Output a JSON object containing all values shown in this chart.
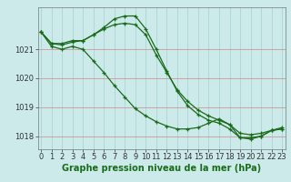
{
  "line1": {
    "x": [
      0,
      1,
      2,
      3,
      4,
      5,
      6,
      7,
      8,
      9,
      10,
      11,
      12,
      13,
      14,
      15,
      16,
      17,
      18,
      19,
      20,
      21,
      22,
      23
    ],
    "y": [
      1021.6,
      1021.2,
      1021.2,
      1021.3,
      1021.3,
      1021.5,
      1021.7,
      1021.85,
      1021.9,
      1021.85,
      1021.5,
      1020.8,
      1020.2,
      1019.6,
      1019.2,
      1018.9,
      1018.7,
      1018.55,
      1018.4,
      1018.1,
      1018.05,
      1018.1,
      1018.2,
      1018.25
    ]
  },
  "line2": {
    "x": [
      0,
      1,
      2,
      3,
      4,
      5,
      6,
      7,
      8,
      9,
      10,
      11,
      12,
      13,
      14,
      15,
      16,
      17,
      18,
      19,
      20,
      21,
      22,
      23
    ],
    "y": [
      1021.6,
      1021.2,
      1021.15,
      1021.25,
      1021.3,
      1021.5,
      1021.75,
      1022.05,
      1022.15,
      1022.15,
      1021.7,
      1021.0,
      1020.25,
      1019.55,
      1019.05,
      1018.75,
      1018.55,
      1018.45,
      1018.25,
      1017.95,
      1017.9,
      1018.0,
      1018.2,
      1018.25
    ]
  },
  "line3": {
    "x": [
      0,
      1,
      2,
      3,
      4,
      5,
      6,
      7,
      8,
      9,
      10,
      11,
      12,
      13,
      14,
      15,
      16,
      17,
      18,
      19,
      20,
      21,
      22,
      23
    ],
    "y": [
      1021.6,
      1021.1,
      1021.0,
      1021.1,
      1021.0,
      1020.6,
      1020.2,
      1019.75,
      1019.35,
      1018.95,
      1018.7,
      1018.5,
      1018.35,
      1018.25,
      1018.25,
      1018.3,
      1018.45,
      1018.6,
      1018.4,
      1017.95,
      1017.95,
      1018.0,
      1018.2,
      1018.3
    ]
  },
  "xlabel": "Graphe pression niveau de la mer (hPa)",
  "xticks": [
    0,
    1,
    2,
    3,
    4,
    5,
    6,
    7,
    8,
    9,
    10,
    11,
    12,
    13,
    14,
    15,
    16,
    17,
    18,
    19,
    20,
    21,
    22,
    23
  ],
  "yticks": [
    1018,
    1019,
    1020,
    1021
  ],
  "ylim": [
    1017.55,
    1022.45
  ],
  "xlim": [
    -0.3,
    23.3
  ],
  "line_color": "#1a6b1a",
  "bg_color": "#cceaea",
  "grid_color_h": "#cc9999",
  "grid_color_v": "#aad4d4",
  "xlabel_fontsize": 7.0,
  "tick_fontsize": 6.0
}
